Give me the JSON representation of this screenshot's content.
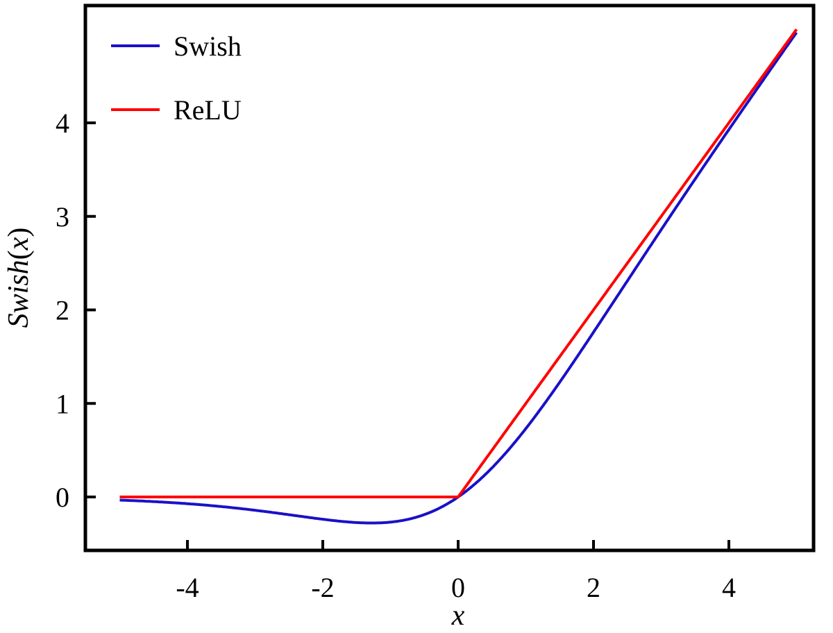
{
  "chart_data": {
    "type": "line",
    "title": "",
    "xlabel": "x",
    "ylabel_parts": {
      "italic": "Swish",
      "paren_open": "(",
      "var": "x",
      "paren_close": ")"
    },
    "xlim": [
      -5.5,
      5.25
    ],
    "ylim": [
      -0.57,
      5.25
    ],
    "xticks": [
      -4,
      -2,
      0,
      2,
      4
    ],
    "xtick_labels": [
      "-4",
      "-2",
      "0",
      "2",
      "4"
    ],
    "yticks": [
      0,
      1,
      2,
      3,
      4
    ],
    "ytick_labels": [
      "0",
      "1",
      "2",
      "3",
      "4"
    ],
    "grid": false,
    "legend_position": "top-left",
    "x_range": [
      -5,
      5
    ],
    "series": [
      {
        "name": "Swish",
        "function": "x * sigmoid(x)",
        "color": "#1a10c8",
        "points": [
          [
            -5,
            -0.033
          ],
          [
            -4,
            -0.072
          ],
          [
            -3,
            -0.142
          ],
          [
            -2,
            -0.238
          ],
          [
            -1.28,
            -0.278
          ],
          [
            -1,
            -0.269
          ],
          [
            -0.5,
            -0.189
          ],
          [
            0,
            0
          ],
          [
            0.5,
            0.311
          ],
          [
            1,
            0.731
          ],
          [
            2,
            1.762
          ],
          [
            3,
            2.858
          ],
          [
            4,
            3.928
          ],
          [
            5,
            4.967
          ]
        ]
      },
      {
        "name": "ReLU",
        "function": "max(0, x)",
        "color": "#ff0000",
        "points": [
          [
            -5,
            0
          ],
          [
            0,
            0
          ],
          [
            5,
            5
          ]
        ]
      }
    ]
  }
}
